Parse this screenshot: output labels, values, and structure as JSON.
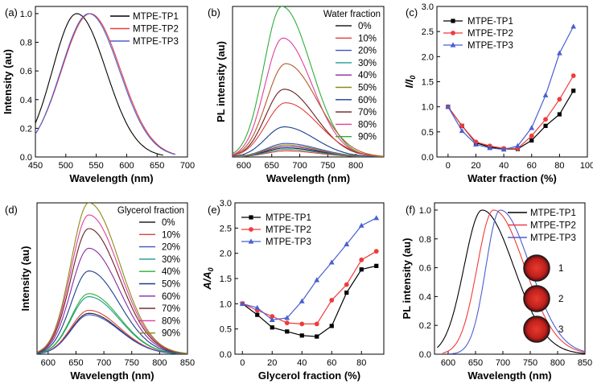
{
  "figure": {
    "panels": [
      "(a)",
      "(b)",
      "(c)",
      "(d)",
      "(e)",
      "(f)"
    ]
  },
  "chart_data": [
    {
      "id": "a",
      "panel_label": "(a)",
      "type": "line",
      "title": "",
      "xlabel": "Wavelength (nm)",
      "ylabel": "Intensity (au)",
      "xlim": [
        450,
        700
      ],
      "ylim": [
        0,
        1.05
      ],
      "xticks": [
        "450",
        "500",
        "550",
        "600",
        "650",
        "700"
      ],
      "yticks": [
        "0.0",
        "0.2",
        "0.4",
        "0.6",
        "0.8",
        "1.0"
      ],
      "legend_title": "",
      "legend_position": "top-right",
      "series": [
        {
          "name": "MTPE-TP1",
          "color": "#000000",
          "marker": "none",
          "peak": 518,
          "amp": 1.0,
          "sl": 40,
          "sr": 48,
          "x0": 450,
          "x1": 660
        },
        {
          "name": "MTPE-TP2",
          "color": "#ef3b3b",
          "marker": "none",
          "peak": 540,
          "amp": 1.0,
          "sl": 47,
          "sr": 50,
          "x0": 450,
          "x1": 680
        },
        {
          "name": "MTPE-TP3",
          "color": "#4a5fd1",
          "marker": "none",
          "peak": 538,
          "amp": 1.0,
          "sl": 46,
          "sr": 50,
          "x0": 450,
          "x1": 680
        }
      ]
    },
    {
      "id": "b",
      "panel_label": "(b)",
      "type": "line",
      "title": "",
      "xlabel": "Wavelength (nm)",
      "ylabel": "PL intensity (au)",
      "xlim": [
        580,
        850
      ],
      "ylim": [
        0,
        100
      ],
      "xticks": [
        "600",
        "650",
        "700",
        "750",
        "800"
      ],
      "yticks": [],
      "legend_title": "Water fraction",
      "legend_position": "top-right",
      "series": [
        {
          "name": "0%",
          "color": "#222222",
          "peak": 675,
          "amp": 6,
          "sl": 35,
          "sr": 58
        },
        {
          "name": "10%",
          "color": "#e0403a",
          "peak": 675,
          "amp": 4,
          "sl": 35,
          "sr": 58
        },
        {
          "name": "20%",
          "color": "#3b53c9",
          "peak": 675,
          "amp": 9,
          "sl": 35,
          "sr": 58
        },
        {
          "name": "30%",
          "color": "#1a9c8c",
          "peak": 675,
          "amp": 5,
          "sl": 35,
          "sr": 58
        },
        {
          "name": "40%",
          "color": "#8a2aa4",
          "peak": 675,
          "amp": 7,
          "sl": 35,
          "sr": 58
        },
        {
          "name": "50%",
          "color": "#8c8a16",
          "peak": 675,
          "amp": 8,
          "sl": 35,
          "sr": 58
        },
        {
          "name": "60%",
          "color": "#1a3d8f",
          "peak": 672,
          "amp": 20,
          "sl": 33,
          "sr": 55
        },
        {
          "name": "70%",
          "color": "#6b1f1f",
          "peak": 672,
          "amp": 45,
          "sl": 33,
          "sr": 55
        },
        {
          "name": "80%",
          "color": "#e0409a",
          "peak": 670,
          "amp": 79,
          "sl": 32,
          "sr": 52
        },
        {
          "name": "90%",
          "color": "#2eae37",
          "peak": 668,
          "amp": 100,
          "sl": 32,
          "sr": 52
        },
        {
          "name": "",
          "color": "#e0403a",
          "peak": 675,
          "amp": 36,
          "sl": 35,
          "sr": 58
        },
        {
          "name": "",
          "color": "#b25a2a",
          "peak": 675,
          "amp": 62,
          "sl": 34,
          "sr": 56
        }
      ]
    },
    {
      "id": "c",
      "panel_label": "(c)",
      "type": "line",
      "title": "",
      "xlabel": "Water fraction (%)",
      "ylabel": "I/I",
      "ylabel_sub": "0",
      "xlim": [
        -8,
        100
      ],
      "ylim": [
        0,
        3.0
      ],
      "xticks": [
        "0",
        "20",
        "40",
        "60",
        "80",
        "100"
      ],
      "yticks": [
        "0.0",
        "0.5",
        "1.0",
        "1.5",
        "2.0",
        "2.5",
        "3.0"
      ],
      "legend_title": "",
      "legend_position": "top-left",
      "x": [
        0,
        10,
        20,
        30,
        40,
        50,
        60,
        70,
        80,
        90
      ],
      "series": [
        {
          "name": "MTPE-TP1",
          "color": "#000000",
          "marker": "square",
          "values": [
            1.0,
            0.62,
            0.28,
            0.2,
            0.16,
            0.16,
            0.33,
            0.62,
            0.85,
            1.32
          ]
        },
        {
          "name": "MTPE-TP2",
          "color": "#ef3b3b",
          "marker": "circle",
          "values": [
            1.0,
            0.62,
            0.3,
            0.22,
            0.17,
            0.17,
            0.42,
            0.75,
            1.15,
            1.62
          ]
        },
        {
          "name": "MTPE-TP3",
          "color": "#4a5fd1",
          "marker": "triangle",
          "values": [
            1.0,
            0.52,
            0.25,
            0.18,
            0.15,
            0.22,
            0.58,
            1.23,
            2.07,
            2.6
          ]
        }
      ]
    },
    {
      "id": "d",
      "panel_label": "(d)",
      "type": "line",
      "title": "",
      "xlabel": "Wavelength (nm)",
      "ylabel": "Intensity (au)",
      "xlim": [
        580,
        850
      ],
      "ylim": [
        0,
        100
      ],
      "xticks": [
        "600",
        "650",
        "700",
        "750",
        "800",
        "850"
      ],
      "yticks": [],
      "legend_title": "Glycerol fraction",
      "legend_position": "top-right",
      "series": [
        {
          "name": "0%",
          "color": "#222222",
          "peak": 673,
          "amp": 27,
          "sl": 32,
          "sr": 55
        },
        {
          "name": "10%",
          "color": "#e0403a",
          "peak": 673,
          "amp": 29,
          "sl": 32,
          "sr": 55
        },
        {
          "name": "20%",
          "color": "#3b53c9",
          "peak": 673,
          "amp": 26,
          "sl": 32,
          "sr": 55
        },
        {
          "name": "30%",
          "color": "#1a9c8c",
          "peak": 673,
          "amp": 38,
          "sl": 32,
          "sr": 55
        },
        {
          "name": "40%",
          "color": "#2eae37",
          "peak": 673,
          "amp": 40,
          "sl": 32,
          "sr": 55
        },
        {
          "name": "50%",
          "color": "#1a3d8f",
          "peak": 673,
          "amp": 55,
          "sl": 32,
          "sr": 55
        },
        {
          "name": "60%",
          "color": "#8a2aa4",
          "peak": 673,
          "amp": 70,
          "sl": 32,
          "sr": 55
        },
        {
          "name": "70%",
          "color": "#6b1f1f",
          "peak": 673,
          "amp": 83,
          "sl": 32,
          "sr": 55
        },
        {
          "name": "80%",
          "color": "#e0409a",
          "peak": 673,
          "amp": 92,
          "sl": 32,
          "sr": 55
        },
        {
          "name": "90%",
          "color": "#8c8a16",
          "peak": 673,
          "amp": 100,
          "sl": 32,
          "sr": 55
        }
      ]
    },
    {
      "id": "e",
      "panel_label": "(e)",
      "type": "line",
      "title": "",
      "xlabel": "Glycerol fraction (%)",
      "ylabel": "A/A",
      "ylabel_sub": "0",
      "xlim": [
        -5,
        95
      ],
      "ylim": [
        0,
        3.0
      ],
      "xticks": [
        "0",
        "20",
        "40",
        "60",
        "80"
      ],
      "yticks": [
        "0.0",
        "0.5",
        "1.0",
        "1.5",
        "2.0",
        "2.5",
        "3.0"
      ],
      "legend_title": "",
      "legend_position": "top-left",
      "x": [
        0,
        10,
        20,
        30,
        40,
        50,
        60,
        70,
        80,
        90
      ],
      "series": [
        {
          "name": "MTPE-TP1",
          "color": "#000000",
          "marker": "square",
          "values": [
            1.0,
            0.78,
            0.53,
            0.45,
            0.37,
            0.35,
            0.56,
            1.22,
            1.68,
            1.75
          ]
        },
        {
          "name": "MTPE-TP2",
          "color": "#ef3b3b",
          "marker": "circle",
          "values": [
            1.0,
            0.87,
            0.75,
            0.62,
            0.6,
            0.6,
            1.07,
            1.38,
            1.87,
            2.04
          ]
        },
        {
          "name": "MTPE-TP3",
          "color": "#4a5fd1",
          "marker": "triangle",
          "values": [
            1.0,
            0.92,
            0.68,
            0.72,
            1.05,
            1.47,
            1.82,
            2.18,
            2.55,
            2.7
          ]
        }
      ]
    },
    {
      "id": "f",
      "panel_label": "(f)",
      "type": "line",
      "title": "",
      "xlabel": "Wavelength (nm)",
      "ylabel": "PL intensity (au)",
      "xlim": [
        575,
        850
      ],
      "ylim": [
        0,
        1.05
      ],
      "xticks": [
        "600",
        "650",
        "700",
        "750",
        "800",
        "850"
      ],
      "yticks": [
        "0.0",
        "0.2",
        "0.4",
        "0.6",
        "0.8",
        "1.0"
      ],
      "legend_title": "",
      "legend_position": "top-right",
      "inset_labels": [
        "1",
        "2",
        "3"
      ],
      "series": [
        {
          "name": "MTPE-TP1",
          "color": "#000000",
          "marker": "none",
          "peak": 662,
          "amp": 1.0,
          "sl": 33,
          "sr": 58,
          "x0": 580,
          "x1": 850
        },
        {
          "name": "MTPE-TP2",
          "color": "#ef3b3b",
          "marker": "none",
          "peak": 683,
          "amp": 1.0,
          "sl": 30,
          "sr": 57,
          "x0": 590,
          "x1": 850
        },
        {
          "name": "MTPE-TP3",
          "color": "#4a5fd1",
          "marker": "none",
          "peak": 695,
          "amp": 1.0,
          "sl": 26,
          "sr": 55,
          "x0": 600,
          "x1": 850
        }
      ]
    }
  ]
}
